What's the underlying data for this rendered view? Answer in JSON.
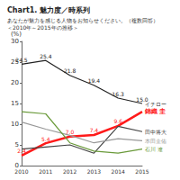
{
  "chart_data": {
    "type": "line",
    "title": "Chart1. 魅力度／時系列",
    "subtitle": [
      "あなたが魅力を感じる人物をお知らせください。（複数回答）",
      "＜2010年～2015年の推移＞"
    ],
    "y_label": "(%)",
    "categories": [
      "2010",
      "2011",
      "2012",
      "2013",
      "2014",
      "2015"
    ],
    "series": [
      {
        "name": "イチロー",
        "color": "#222222",
        "values": [
          24.5,
          25.4,
          21.8,
          19.4,
          16.3,
          15.0
        ],
        "value_labels": [
          "24.5",
          "25.4",
          "21.8",
          "19.4",
          "16.3",
          "15.0"
        ]
      },
      {
        "name": "錦織 圭",
        "color": "#ff1a1a",
        "values": [
          2.4,
          5.4,
          7.0,
          7.4,
          9.6,
          13.0
        ],
        "value_labels": [
          "2.4",
          "5.4",
          "7.0",
          "7.4",
          "9.6",
          null
        ]
      },
      {
        "name": "田中将大",
        "color": "#444444",
        "values": [
          4.0,
          4.5,
          5.0,
          3.0,
          9.5,
          8.2
        ]
      },
      {
        "name": "本田圭佑",
        "color": "#999999",
        "values": [
          10.5,
          8.8,
          7.3,
          5.5,
          6.5,
          6.0
        ]
      },
      {
        "name": "石川 遼",
        "color": "#6a9a3a",
        "values": [
          13.0,
          12.5,
          5.5,
          3.5,
          3.0,
          4.0
        ]
      }
    ],
    "ylim": [
      0,
      30
    ],
    "yticks": [
      0,
      5,
      10,
      15,
      20,
      25,
      30
    ],
    "grid": false,
    "data_labels": true
  }
}
